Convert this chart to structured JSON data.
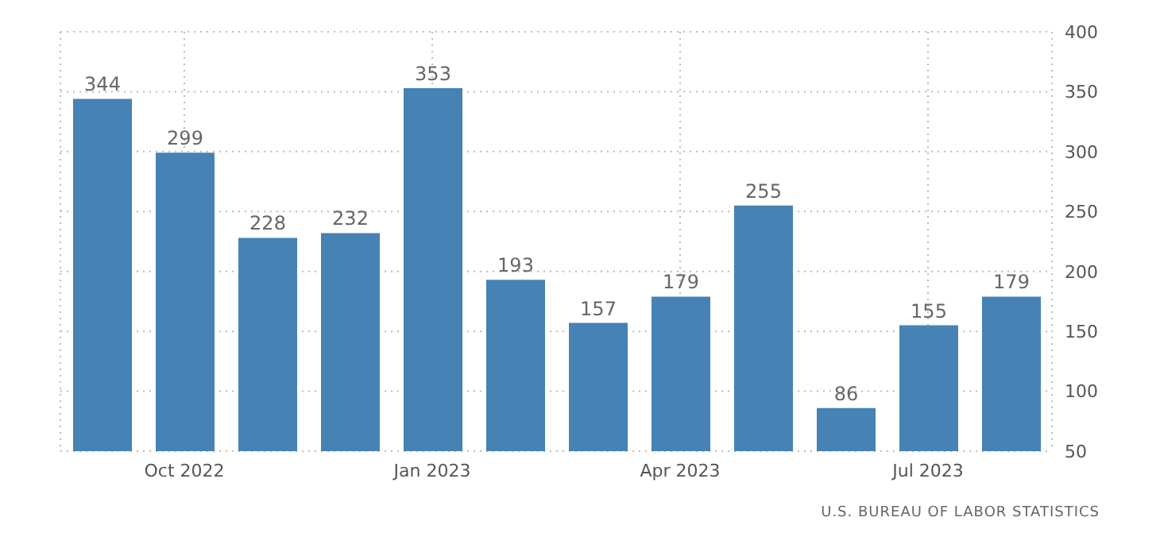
{
  "chart_data": {
    "type": "bar",
    "categories": [
      null,
      "Oct 2022",
      null,
      null,
      "Jan 2023",
      null,
      null,
      "Apr 2023",
      null,
      null,
      "Jul 2023",
      null
    ],
    "values": [
      344,
      299,
      228,
      232,
      353,
      193,
      157,
      179,
      255,
      86,
      155,
      179
    ],
    "color": "#4682b4",
    "ylim": [
      50,
      400
    ],
    "yticks": [
      50,
      100,
      150,
      200,
      250,
      300,
      350,
      400
    ],
    "grid": true,
    "data_labels": true,
    "annotations": [
      "U.S. BUREAU OF LABOR STATISTICS"
    ]
  }
}
